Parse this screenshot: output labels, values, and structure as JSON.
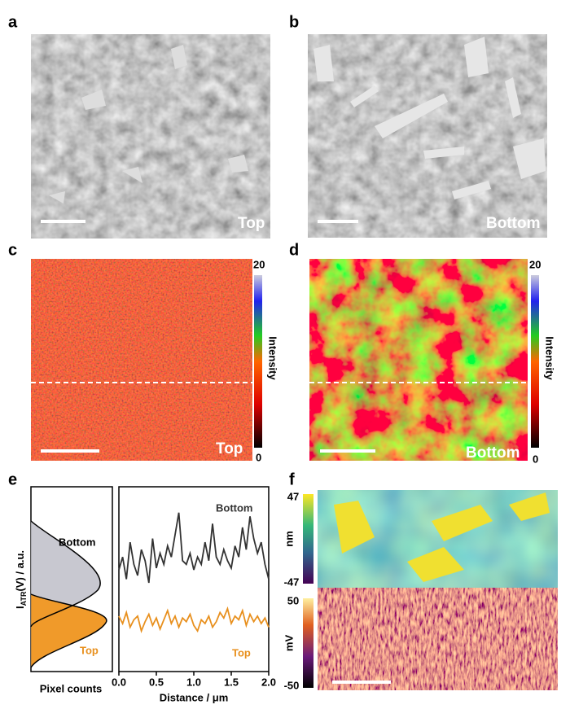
{
  "panels": {
    "a": {
      "label": "a",
      "tag": "Top"
    },
    "b": {
      "label": "b",
      "tag": "Bottom"
    },
    "c": {
      "label": "c",
      "tag": "Top",
      "colorbar": {
        "max": 20,
        "min": 0,
        "title": "Intensity"
      }
    },
    "d": {
      "label": "d",
      "tag": "Bottom",
      "colorbar": {
        "max": 20,
        "min": 0,
        "title": "Intensity"
      }
    },
    "e": {
      "label": "e",
      "ylabel": {
        "main": "I",
        "sub": "ATR",
        "rest": "(V) / a.u."
      },
      "hist_xlabel": "Pixel counts",
      "hist_labels": {
        "bottom": "Bottom",
        "top": "Top"
      }
    },
    "f": {
      "label": "f",
      "top_colorbar": {
        "max": 47,
        "min": -47,
        "unit": "nm"
      },
      "bottom_colorbar": {
        "max": 50,
        "min": -50,
        "unit": "mV"
      }
    }
  },
  "chart_data": {
    "type": "line",
    "xlabel": "Distance / μm",
    "x": [
      0,
      0.05,
      0.1,
      0.15,
      0.2,
      0.25,
      0.3,
      0.35,
      0.4,
      0.45,
      0.5,
      0.55,
      0.6,
      0.65,
      0.7,
      0.75,
      0.8,
      0.85,
      0.9,
      0.95,
      1,
      1.05,
      1.1,
      1.15,
      1.2,
      1.25,
      1.3,
      1.35,
      1.4,
      1.45,
      1.5,
      1.55,
      1.6,
      1.65,
      1.7,
      1.75,
      1.8,
      1.85,
      1.9,
      1.95,
      2
    ],
    "xlim": [
      0,
      2
    ],
    "xticks": [
      {
        "value": 0,
        "label": "0.0"
      },
      0.5,
      {
        "value": 1,
        "label": "1.0"
      },
      1.5,
      {
        "value": 2,
        "label": "2.0"
      }
    ],
    "ylim": [
      0,
      1
    ],
    "series": [
      {
        "name": "Bottom",
        "color": "#333333",
        "values": [
          0.55,
          0.62,
          0.5,
          0.7,
          0.58,
          0.52,
          0.66,
          0.6,
          0.48,
          0.72,
          0.56,
          0.64,
          0.58,
          0.68,
          0.62,
          0.74,
          0.86,
          0.6,
          0.58,
          0.64,
          0.55,
          0.62,
          0.58,
          0.7,
          0.6,
          0.8,
          0.62,
          0.58,
          0.66,
          0.6,
          0.56,
          0.68,
          0.62,
          0.78,
          0.66,
          0.84,
          0.72,
          0.64,
          0.7,
          0.58,
          0.5
        ]
      },
      {
        "name": "Top",
        "color": "#e8901e",
        "values": [
          0.3,
          0.26,
          0.32,
          0.24,
          0.28,
          0.3,
          0.22,
          0.27,
          0.31,
          0.25,
          0.29,
          0.23,
          0.28,
          0.33,
          0.26,
          0.3,
          0.24,
          0.29,
          0.27,
          0.31,
          0.25,
          0.22,
          0.28,
          0.26,
          0.3,
          0.24,
          0.27,
          0.32,
          0.29,
          0.34,
          0.26,
          0.3,
          0.28,
          0.33,
          0.25,
          0.31,
          0.27,
          0.3,
          0.26,
          0.29,
          0.24
        ]
      }
    ]
  }
}
